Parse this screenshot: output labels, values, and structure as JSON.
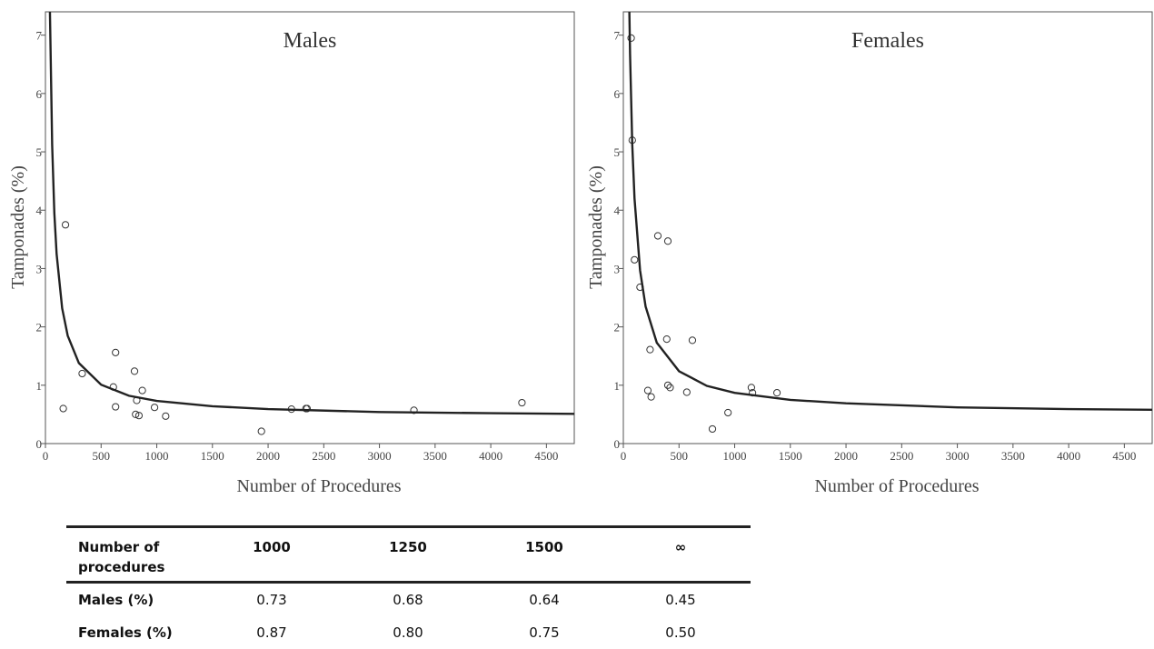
{
  "chart_data": [
    {
      "type": "scatter",
      "title": "Males",
      "x_label": "Number of Procedures",
      "y_label": "Tamponades (%)",
      "x": [
        160,
        180,
        330,
        610,
        630,
        630,
        800,
        810,
        820,
        840,
        870,
        980,
        1080,
        1940,
        2210,
        2340,
        2350,
        3310,
        4280
      ],
      "values": [
        0.6,
        3.75,
        1.2,
        0.97,
        1.56,
        0.63,
        1.24,
        0.5,
        0.74,
        0.48,
        0.91,
        0.62,
        0.47,
        0.21,
        0.59,
        0.6,
        0.6,
        0.57,
        0.7
      ],
      "fit": {
        "x": [
          40,
          60,
          80,
          100,
          150,
          200,
          300,
          500,
          750,
          1000,
          1500,
          2000,
          3000,
          4000,
          4750
        ],
        "values": [
          7.45,
          5.12,
          3.95,
          3.25,
          2.32,
          1.85,
          1.38,
          1.01,
          0.82,
          0.73,
          0.64,
          0.59,
          0.54,
          0.52,
          0.51
        ]
      },
      "xlim": [
        0,
        4750
      ],
      "ylim": [
        0,
        7.4
      ],
      "xticks": [
        0,
        500,
        1000,
        1500,
        2000,
        2500,
        3000,
        3500,
        4000,
        4500
      ],
      "yticks": [
        0,
        1,
        2,
        3,
        4,
        5,
        6,
        7
      ],
      "color": "#333333"
    },
    {
      "type": "scatter",
      "title": "Females",
      "x_label": "Number of Procedures",
      "y_label": "Tamponades (%)",
      "x": [
        70,
        80,
        100,
        150,
        220,
        240,
        250,
        310,
        390,
        400,
        400,
        420,
        570,
        620,
        800,
        940,
        1150,
        1160,
        1380
      ],
      "values": [
        6.95,
        5.2,
        3.15,
        2.68,
        0.91,
        1.61,
        0.8,
        3.56,
        1.79,
        3.47,
        1.0,
        0.96,
        0.88,
        1.77,
        0.25,
        0.53,
        0.96,
        0.87,
        0.87
      ],
      "fit": {
        "x": [
          50,
          60,
          80,
          100,
          150,
          200,
          300,
          500,
          750,
          1000,
          1500,
          2000,
          3000,
          4000,
          4750
        ],
        "values": [
          7.9,
          6.67,
          5.13,
          4.2,
          2.97,
          2.35,
          1.73,
          1.24,
          0.99,
          0.87,
          0.75,
          0.69,
          0.62,
          0.59,
          0.58
        ]
      },
      "xlim": [
        0,
        4750
      ],
      "ylim": [
        0,
        7.4
      ],
      "xticks": [
        0,
        500,
        1000,
        1500,
        2000,
        2500,
        3000,
        3500,
        4000,
        4500
      ],
      "yticks": [
        0,
        1,
        2,
        3,
        4,
        5,
        6,
        7
      ],
      "color": "#333333"
    }
  ],
  "table": {
    "header": [
      "Number of procedures",
      "1000",
      "1250",
      "1500",
      "∞"
    ],
    "rows": [
      [
        "Males (%)",
        "0.73",
        "0.68",
        "0.64",
        "0.45"
      ],
      [
        "Females (%)",
        "0.87",
        "0.80",
        "0.75",
        "0.50"
      ]
    ]
  }
}
